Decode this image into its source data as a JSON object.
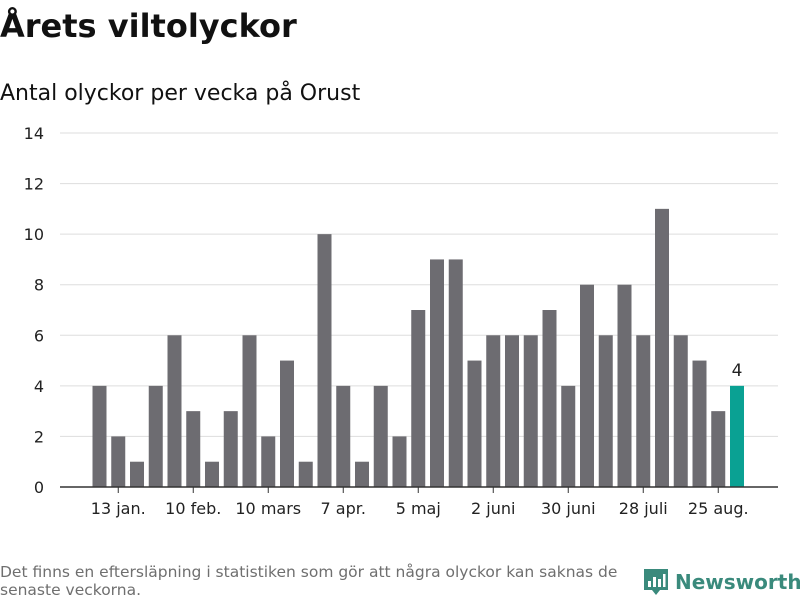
{
  "title": "Årets viltolyckor",
  "subtitle": "Antal olyckor per vecka på Orust",
  "footnote": "Det finns en eftersläpning i statistiken som gör att några olyckor kan saknas de senaste veckorna.",
  "brand": "Newsworthy",
  "colors": {
    "bar": "#6d6c71",
    "highlight": "#0aa193",
    "grid": "#dddddd",
    "axis": "#333333",
    "brand": "#3a8a7c"
  },
  "chart_data": {
    "type": "bar",
    "title": "Årets viltolyckor",
    "subtitle": "Antal olyckor per vecka på Orust",
    "values": [
      4,
      2,
      1,
      4,
      6,
      3,
      1,
      3,
      6,
      2,
      5,
      1,
      10,
      4,
      1,
      4,
      2,
      7,
      9,
      9,
      5,
      6,
      6,
      6,
      7,
      4,
      8,
      6,
      8,
      6,
      11,
      6,
      5,
      3,
      4
    ],
    "highlight_index": 34,
    "highlight_label": "4",
    "x_tick_labels": [
      "13 jan.",
      "10 feb.",
      "10 mars",
      "7 apr.",
      "5 maj",
      "2 juni",
      "30 juni",
      "28 juli",
      "25 aug."
    ],
    "x_tick_bar_index": [
      1,
      5,
      9,
      13,
      17,
      21,
      25,
      29,
      33
    ],
    "y_ticks": [
      "0",
      "2",
      "4",
      "6",
      "8",
      "10",
      "12",
      "14"
    ],
    "ylim": [
      0,
      14
    ],
    "grid": true
  }
}
